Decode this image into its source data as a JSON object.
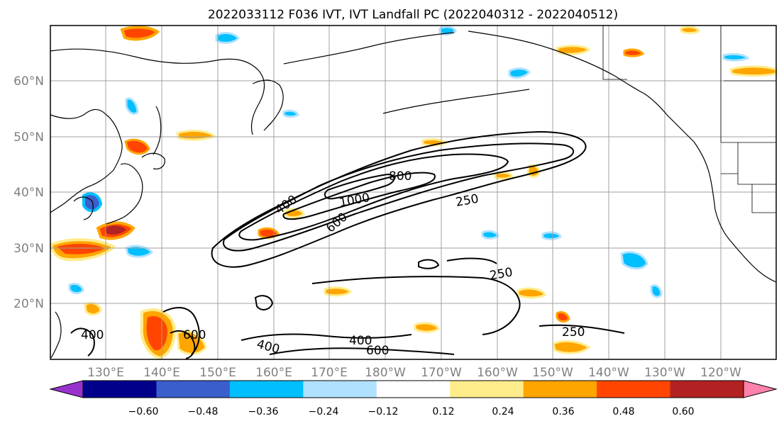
{
  "title": "2022033112 F036 IVT, IVT Landfall PC (2022040312 - 2022040512)",
  "map": {
    "lat_ticks": [
      "20°N",
      "30°N",
      "40°N",
      "50°N",
      "60°N"
    ],
    "lon_ticks": [
      "130°E",
      "140°E",
      "150°E",
      "160°E",
      "170°E",
      "180°W",
      "170°W",
      "160°W",
      "150°W",
      "140°W",
      "130°W",
      "120°W"
    ],
    "contour_labels": [
      "400",
      "800",
      "1000",
      "600",
      "250",
      "250",
      "250",
      "400",
      "600",
      "400",
      "400",
      "600"
    ]
  },
  "colorbar": {
    "colors": [
      "#9932cc",
      "#00008b",
      "#3a5fcd",
      "#00bfff",
      "#b0e2ff",
      "#ffffff",
      "#ffec8b",
      "#ffa500",
      "#ff4500",
      "#b22222",
      "#ff82ab"
    ],
    "ticks": [
      "−0.60",
      "−0.48",
      "−0.36",
      "−0.24",
      "−0.12",
      "0.12",
      "0.24",
      "0.36",
      "0.48",
      "0.60"
    ]
  }
}
